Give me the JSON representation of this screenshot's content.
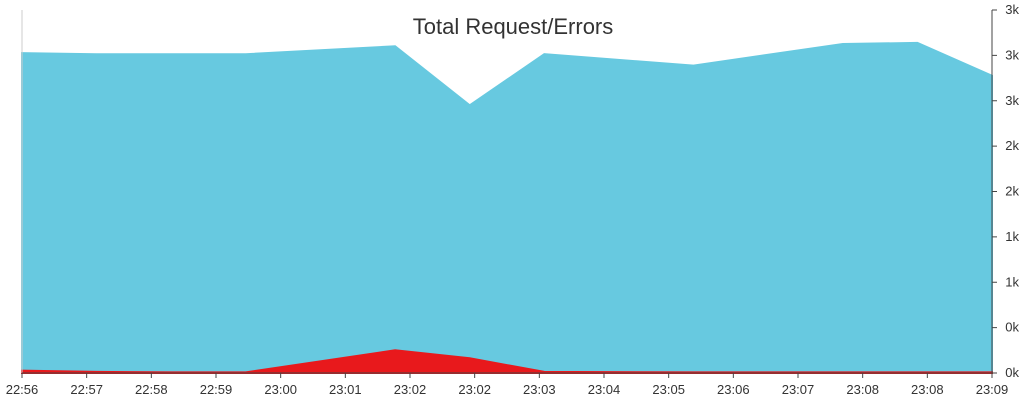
{
  "chart_data": {
    "type": "area",
    "title": "Total Request/Errors",
    "xlabel": "",
    "ylabel": "",
    "grid": false,
    "x_tick_labels": [
      "22:56",
      "22:57",
      "22:58",
      "22:59",
      "23:00",
      "23:01",
      "23:02",
      "23:02",
      "23:03",
      "23:04",
      "23:05",
      "23:06",
      "23:07",
      "23:08",
      "23:08",
      "23:09"
    ],
    "y_tick_labels": [
      "3k",
      "3k",
      "3k",
      "2k",
      "2k",
      "1k",
      "1k",
      "0k",
      "0k"
    ],
    "ylim": [
      0,
      3200
    ],
    "x": [
      "22:56",
      "22:57",
      "22:58",
      "22:59",
      "23:01",
      "23:02",
      "23:03",
      "23:05",
      "23:07",
      "23:08",
      "23:09"
    ],
    "series": [
      {
        "color": "#67c9e0",
        "values": [
          2820,
          2810,
          2810,
          2810,
          2880,
          2360,
          2810,
          2710,
          2900,
          2910,
          2620
        ]
      },
      {
        "color": "#e8191c",
        "values": [
          20,
          10,
          5,
          5,
          200,
          130,
          10,
          5,
          5,
          5,
          5
        ]
      }
    ]
  }
}
